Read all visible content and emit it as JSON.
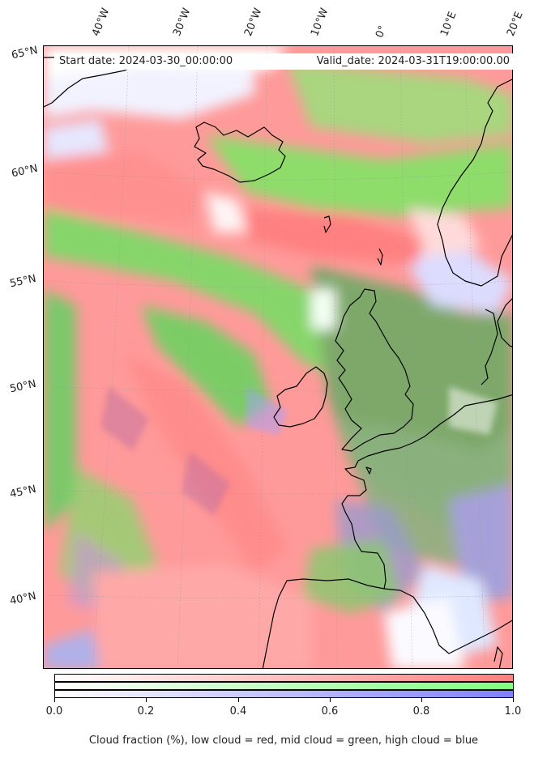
{
  "info_box": {
    "start": "Start date: 2024-03-30_00:00:00",
    "valid": "Valid_date: 2024-03-31T19:00:00.00"
  },
  "lon_ticks": [
    "40°W",
    "30°W",
    "20°W",
    "10°W",
    "0°",
    "10°E",
    "20°E"
  ],
  "lat_ticks": [
    "65°N",
    "60°N",
    "55°N",
    "50°N",
    "45°N",
    "40°N"
  ],
  "colorbar": {
    "ticks": [
      "0.0",
      "0.2",
      "0.4",
      "0.6",
      "0.8",
      "1.0"
    ],
    "label": "Cloud fraction (%), low cloud = red, mid cloud = green, high cloud = blue",
    "colors": {
      "low": "#ff7f7f",
      "mid": "#7fff7f",
      "high": "#7f7fff"
    }
  },
  "colors": {
    "ocean_base": "#ff9a9a",
    "coast": "#000000"
  }
}
